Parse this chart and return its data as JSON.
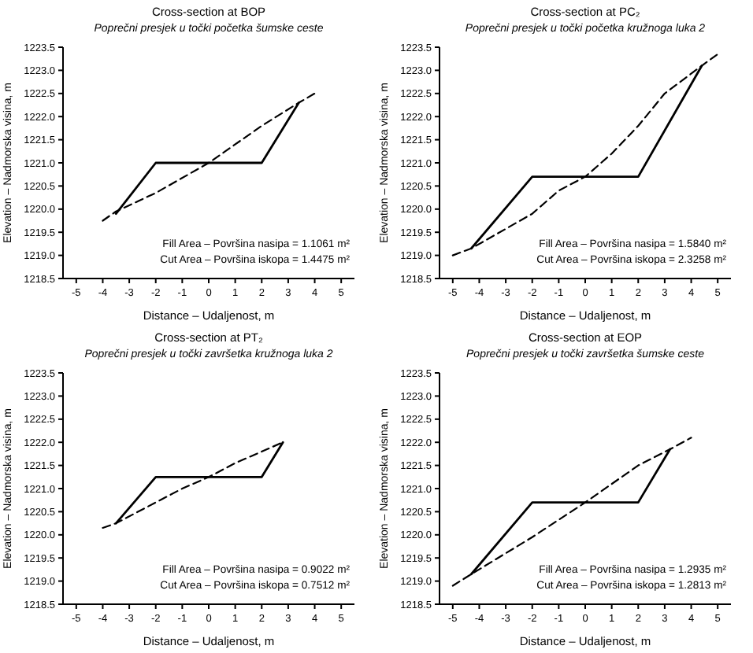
{
  "chart_data": [
    {
      "type": "line",
      "title": "Cross-section at BOP",
      "subtitle": "Poprečni presjek u točki početka šumske ceste",
      "xlabel": "Distance – Udaljenost, m",
      "ylabel": "Elevation – Nadmorska visina, m",
      "xlim": [
        -5.5,
        5.5
      ],
      "ylim": [
        1218.5,
        1223.5
      ],
      "xticks": [
        -5,
        -4,
        -3,
        -2,
        -1,
        0,
        1,
        2,
        3,
        4,
        5
      ],
      "yticks": [
        1218.5,
        {
          "value": 1219,
          "label": "1219.0"
        },
        1219.5,
        {
          "value": 1220,
          "label": "1220.0"
        },
        1220.5,
        {
          "value": 1221,
          "label": "1221.0"
        },
        1221.5,
        {
          "value": 1222,
          "label": "1222.0"
        },
        1222.5,
        {
          "value": 1223,
          "label": "1223.0"
        },
        1223.5
      ],
      "grid": false,
      "marker": "none",
      "annotations": [
        "Fill Area – Površina nasipa = 1.1061 m²",
        "Cut Area – Površina iskopa = 1.4475 m²"
      ],
      "series": [
        {
          "color": "#000000",
          "line_style": "solid",
          "x": [
            -3.5,
            -2,
            2,
            3.4
          ],
          "values": [
            1219.9,
            1221,
            1221,
            1222.3
          ]
        },
        {
          "color": "#000000",
          "line_style": "dashed",
          "x": [
            -4,
            -3.5,
            -2,
            0,
            2,
            3.4,
            4
          ],
          "values": [
            1219.75,
            1219.95,
            1220.35,
            1221,
            1221.8,
            1222.3,
            1222.5
          ]
        }
      ]
    },
    {
      "type": "line",
      "title": "Cross-section at PC₂",
      "subtitle": "Poprečni presjek u točki početka kružnoga luka 2",
      "xlabel": "Distance – Udaljenost, m",
      "ylabel": "Elevation – Nadmorska visina, m",
      "xlim": [
        -5.5,
        5.5
      ],
      "ylim": [
        1218.5,
        1223.5
      ],
      "xticks": [
        -5,
        -4,
        -3,
        -2,
        -1,
        0,
        1,
        2,
        3,
        4,
        5
      ],
      "yticks": [
        1218.5,
        {
          "value": 1219,
          "label": "1219.0"
        },
        1219.5,
        {
          "value": 1220,
          "label": "1220.0"
        },
        1220.5,
        {
          "value": 1221,
          "label": "1221.0"
        },
        1221.5,
        {
          "value": 1222,
          "label": "1222.0"
        },
        1222.5,
        {
          "value": 1223,
          "label": "1223.0"
        },
        1223.5
      ],
      "grid": false,
      "marker": "none",
      "annotations": [
        "Fill Area – Površina nasipa = 1.5840 m²",
        "Cut Area – Površina iskopa = 2.3258 m²"
      ],
      "series": [
        {
          "color": "#000000",
          "line_style": "solid",
          "x": [
            -4.3,
            -2,
            2,
            4.4
          ],
          "values": [
            1219.15,
            1220.7,
            1220.7,
            1223.1
          ]
        },
        {
          "color": "#000000",
          "line_style": "dashed",
          "x": [
            -5,
            -4.3,
            -2,
            -1,
            0,
            1,
            2,
            3,
            4.4,
            5
          ],
          "values": [
            1219,
            1219.15,
            1219.9,
            1220.4,
            1220.7,
            1221.2,
            1221.8,
            1222.5,
            1223.1,
            1223.35
          ]
        }
      ]
    },
    {
      "type": "line",
      "title": "Cross-section at PT₂",
      "subtitle": "Poprečni presjek u točki završetka kružnoga luka 2",
      "xlabel": "Distance – Udaljenost, m",
      "ylabel": "Elevation – Nadmorska visina, m",
      "xlim": [
        -5.5,
        5.5
      ],
      "ylim": [
        1218.5,
        1223.5
      ],
      "xticks": [
        -5,
        -4,
        -3,
        -2,
        -1,
        0,
        1,
        2,
        3,
        4,
        5
      ],
      "yticks": [
        1218.5,
        {
          "value": 1219,
          "label": "1219.0"
        },
        1219.5,
        {
          "value": 1220,
          "label": "1220.0"
        },
        1220.5,
        {
          "value": 1221,
          "label": "1221.0"
        },
        1221.5,
        {
          "value": 1222,
          "label": "1222.0"
        },
        1222.5,
        {
          "value": 1223,
          "label": "1223.0"
        },
        1223.5
      ],
      "grid": false,
      "marker": "none",
      "annotations": [
        "Fill Area – Površina nasipa = 0.9022 m²",
        "Cut Area – Površina iskopa = 0.7512 m²"
      ],
      "series": [
        {
          "color": "#000000",
          "line_style": "solid",
          "x": [
            -3.5,
            -2,
            2,
            2.8
          ],
          "values": [
            1220.25,
            1221.25,
            1221.25,
            1222
          ]
        },
        {
          "color": "#000000",
          "line_style": "dashed",
          "x": [
            -4,
            -3.5,
            -1,
            0,
            1,
            2.8
          ],
          "values": [
            1220.15,
            1220.25,
            1221,
            1221.25,
            1221.55,
            1222
          ]
        }
      ]
    },
    {
      "type": "line",
      "title": "Cross-section at EOP",
      "subtitle": "Poprečni presjek u točki završetka šumske ceste",
      "xlabel": "Distance – Udaljenost, m",
      "ylabel": "Elevation – Nadmorska visina, m",
      "xlim": [
        -5.5,
        5.5
      ],
      "ylim": [
        1218.5,
        1223.5
      ],
      "xticks": [
        -5,
        -4,
        -3,
        -2,
        -1,
        0,
        1,
        2,
        3,
        4,
        5
      ],
      "yticks": [
        1218.5,
        {
          "value": 1219,
          "label": "1219.0"
        },
        1219.5,
        {
          "value": 1220,
          "label": "1220.0"
        },
        1220.5,
        {
          "value": 1221,
          "label": "1221.0"
        },
        1221.5,
        {
          "value": 1222,
          "label": "1222.0"
        },
        1222.5,
        {
          "value": 1223,
          "label": "1223.0"
        },
        1223.5
      ],
      "grid": false,
      "marker": "none",
      "annotations": [
        "Fill Area – Površina nasipa = 1.2935 m²",
        "Cut Area – Površina iskopa = 1.2813 m²"
      ],
      "series": [
        {
          "color": "#000000",
          "line_style": "solid",
          "x": [
            -4.3,
            -2,
            2,
            3.2
          ],
          "values": [
            1219.15,
            1220.7,
            1220.7,
            1221.85
          ]
        },
        {
          "color": "#000000",
          "line_style": "dashed",
          "x": [
            -5,
            -4.3,
            -2,
            0,
            2,
            3.2,
            4
          ],
          "values": [
            1218.9,
            1219.15,
            1219.95,
            1220.7,
            1221.5,
            1221.85,
            1222.1
          ]
        }
      ]
    }
  ]
}
